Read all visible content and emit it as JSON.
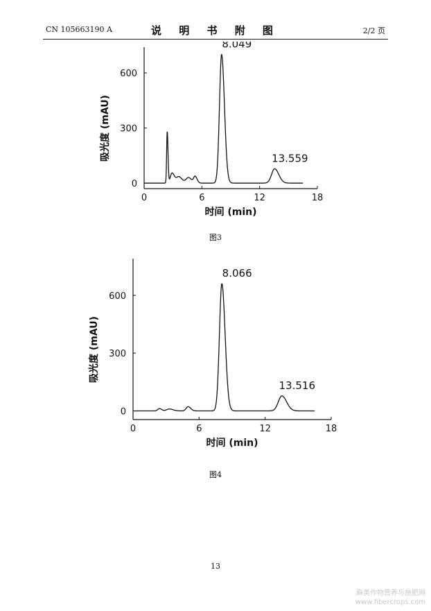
{
  "header": {
    "left": "CN 105663190 A",
    "title": "说 明 书 附 图",
    "right": "2/2 页"
  },
  "figures": [
    {
      "caption": "图3"
    },
    {
      "caption": "图4"
    }
  ],
  "page_number": "13",
  "watermark": {
    "line1": "麻类作物营养与施肥网",
    "line2": "www.fibercrops.com"
  },
  "chart_data": [
    {
      "type": "line",
      "xlabel": "时间 (min)",
      "ylabel": "吸光度 (mAU)",
      "xlim": [
        0,
        18
      ],
      "ylim": [
        -30,
        740
      ],
      "xticks": [
        "0",
        "6",
        "12",
        "18"
      ],
      "yticks": [
        "0",
        "300",
        "600"
      ],
      "baseline_end_x": 16.5,
      "peaks": [
        {
          "x": 2.4,
          "height": 280,
          "width": 0.06
        },
        {
          "x": 2.9,
          "height": 55,
          "width": 0.18
        },
        {
          "x": 3.6,
          "height": 35,
          "width": 0.25
        },
        {
          "x": 4.6,
          "height": 30,
          "width": 0.25
        },
        {
          "x": 5.3,
          "height": 35,
          "width": 0.15
        },
        {
          "x": 8.049,
          "height": 700,
          "width": 0.22
        },
        {
          "x": 13.559,
          "height": 78,
          "width": 0.32
        }
      ],
      "annotations": [
        {
          "x": 8.049,
          "y": 700,
          "label": "8.049"
        },
        {
          "x": 13.559,
          "y": 78,
          "label": "13.559"
        }
      ]
    },
    {
      "type": "line",
      "xlabel": "时间 (min)",
      "ylabel": "吸光度 (mAU)",
      "xlim": [
        0,
        18
      ],
      "ylim": [
        -45,
        790
      ],
      "xticks": [
        "0",
        "6",
        "12",
        "18"
      ],
      "yticks": [
        "0",
        "300",
        "600"
      ],
      "baseline_end_x": 16.5,
      "peaks": [
        {
          "x": 2.4,
          "height": 12,
          "width": 0.15
        },
        {
          "x": 3.3,
          "height": 10,
          "width": 0.25
        },
        {
          "x": 5.0,
          "height": 22,
          "width": 0.18
        },
        {
          "x": 8.066,
          "height": 660,
          "width": 0.22
        },
        {
          "x": 13.516,
          "height": 78,
          "width": 0.32
        }
      ],
      "annotations": [
        {
          "x": 8.066,
          "y": 660,
          "label": "8.066"
        },
        {
          "x": 13.516,
          "y": 78,
          "label": "13.516"
        }
      ]
    }
  ]
}
